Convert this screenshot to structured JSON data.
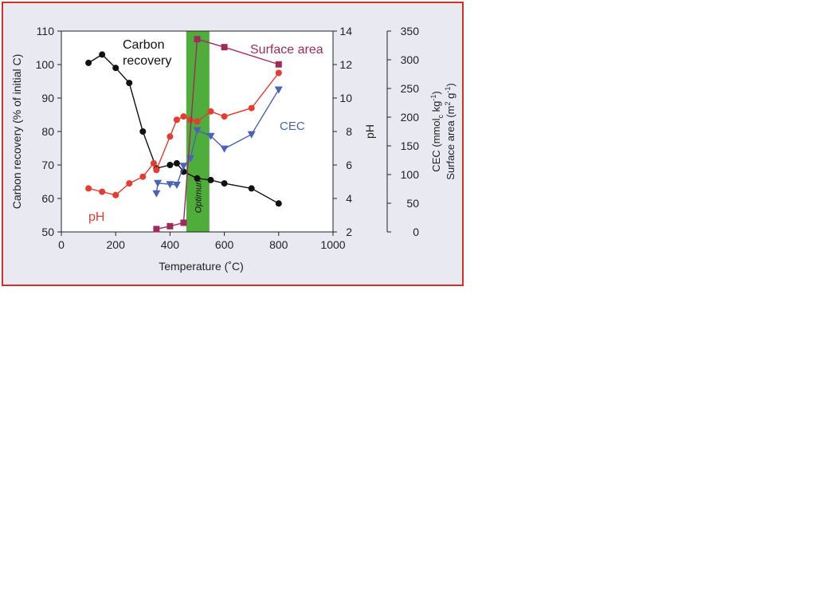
{
  "chart_data": {
    "type": "line",
    "xlabel": "Temperature (˚C)",
    "xlim": [
      0,
      1000
    ],
    "xticks": [
      0,
      200,
      400,
      600,
      800,
      1000
    ],
    "axes": {
      "left": {
        "label": "Carbon recovery (% of initial C)",
        "lim": [
          50,
          110
        ],
        "ticks": [
          50,
          60,
          70,
          80,
          90,
          100,
          110
        ]
      },
      "ph": {
        "label": "pH",
        "lim": [
          2,
          14
        ],
        "ticks": [
          2,
          4,
          6,
          8,
          10,
          12,
          14
        ]
      },
      "right": {
        "label_line1": "CEC (mmol",
        "label_sub": "c",
        "label_line1_end": " kg",
        "label_sup1": "-1",
        "label_line1_close": ")",
        "label_line2": "Surface area (m",
        "label_sup2a": "2",
        "label_line2_mid": " g",
        "label_sup2b": "-1",
        "label_line2_close": ")",
        "lim": [
          0,
          350
        ],
        "ticks": [
          0,
          50,
          100,
          150,
          200,
          250,
          300,
          350
        ]
      }
    },
    "optimum": {
      "label": "Optimum",
      "x_range": [
        460,
        545
      ],
      "color": "#4fae3b"
    },
    "series": [
      {
        "name": "Carbon recovery",
        "label_line1": "Carbon",
        "label_line2": "recovery",
        "axis": "left",
        "color": "#111111",
        "marker": "circle",
        "x": [
          100,
          150,
          200,
          250,
          300,
          350,
          400,
          425,
          450,
          500,
          550,
          600,
          700,
          800
        ],
        "y": [
          100.5,
          103,
          99,
          94.5,
          80,
          69,
          70,
          70.5,
          68,
          66,
          65.5,
          64.5,
          63,
          58.5
        ]
      },
      {
        "name": "pH",
        "axis": "ph",
        "color": "#e63b2e",
        "marker": "circle",
        "x": [
          100,
          150,
          200,
          250,
          300,
          340,
          350,
          400,
          425,
          450,
          475,
          500,
          550,
          600,
          700,
          800
        ],
        "y": [
          4.6,
          4.4,
          4.2,
          4.9,
          5.3,
          6.1,
          5.7,
          7.7,
          8.7,
          8.9,
          8.7,
          8.6,
          9.2,
          8.9,
          9.4,
          11.5
        ]
      },
      {
        "name": "CEC",
        "axis": "right",
        "color": "#4a63b8",
        "marker": "triangle-down",
        "x": [
          350,
          355,
          400,
          425,
          450,
          475,
          500,
          550,
          600,
          700,
          800
        ],
        "y": [
          67,
          85,
          83,
          82,
          115,
          128,
          177,
          167,
          145,
          170,
          248
        ]
      },
      {
        "name": "Surface area",
        "axis": "right",
        "color": "#a02a5e",
        "marker": "square",
        "x": [
          350,
          400,
          450,
          500,
          600,
          800
        ],
        "y": [
          5,
          10,
          16,
          336,
          322,
          292
        ]
      }
    ]
  }
}
